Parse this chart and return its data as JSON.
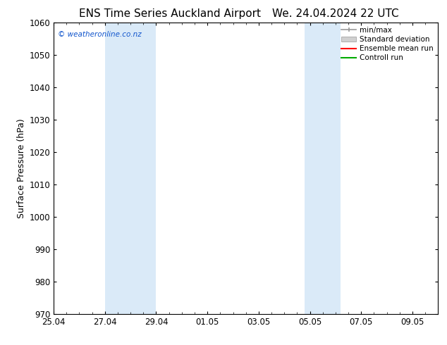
{
  "title_left": "ENS Time Series Auckland Airport",
  "title_right": "We. 24.04.2024 22 UTC",
  "ylabel": "Surface Pressure (hPa)",
  "ylim": [
    970,
    1060
  ],
  "yticks": [
    970,
    980,
    990,
    1000,
    1010,
    1020,
    1030,
    1040,
    1050,
    1060
  ],
  "xlim_start": 0.0,
  "xlim_end": 15.0,
  "xtick_labels": [
    "25.04",
    "27.04",
    "29.04",
    "01.05",
    "03.05",
    "05.05",
    "07.05",
    "09.05"
  ],
  "xtick_positions": [
    0.0,
    2.0,
    4.0,
    6.0,
    8.0,
    10.0,
    12.0,
    14.0
  ],
  "shaded_regions": [
    {
      "x_start": 2.0,
      "x_end": 4.0,
      "color": "#daeaf8"
    },
    {
      "x_start": 9.8,
      "x_end": 11.2,
      "color": "#daeaf8"
    }
  ],
  "watermark_text": "© weatheronline.co.nz",
  "watermark_color": "#1155cc",
  "legend_labels": [
    "min/max",
    "Standard deviation",
    "Ensemble mean run",
    "Controll run"
  ],
  "legend_line_colors": [
    "#999999",
    "#bbbbbb",
    "#ff0000",
    "#00aa00"
  ],
  "bg_color": "#ffffff",
  "title_fontsize": 11,
  "tick_fontsize": 8.5,
  "ylabel_fontsize": 9
}
